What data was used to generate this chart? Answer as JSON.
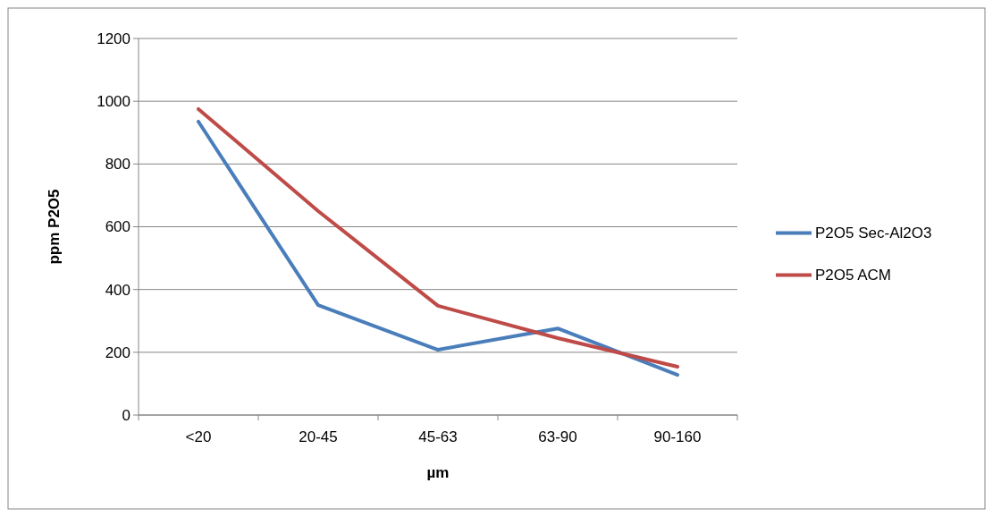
{
  "chart_data": {
    "type": "line",
    "xlabel": "µm",
    "ylabel": "ppm P2O5",
    "categories": [
      "<20",
      "20-45",
      "45-63",
      "63-90",
      "90-160"
    ],
    "series": [
      {
        "name": "P2O5 Sec-Al2O3",
        "color": "#4a7ebb",
        "values": [
          935,
          350,
          208,
          276,
          128
        ]
      },
      {
        "name": "P2O5 ACM",
        "color": "#be4b48",
        "values": [
          975,
          650,
          348,
          245,
          154
        ]
      }
    ],
    "ylim": [
      0,
      1200
    ],
    "yticks": [
      0,
      200,
      400,
      600,
      800,
      1000,
      1200
    ],
    "grid": "y",
    "legend": "right",
    "marker": "none",
    "line_style": "solid"
  }
}
